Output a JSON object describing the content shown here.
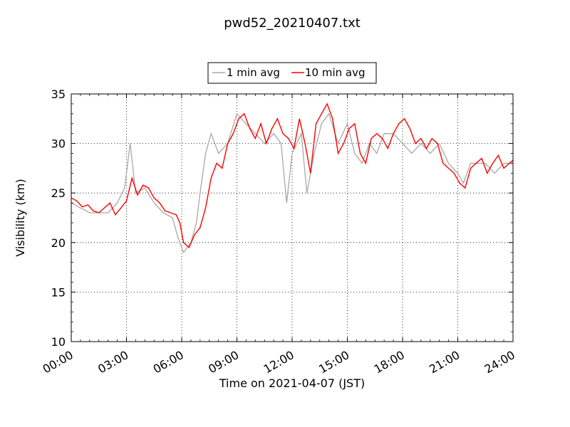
{
  "chart_data": {
    "type": "line",
    "title": "pwd52_20210407.txt",
    "xlabel": "Time on 2021-04-07 (JST)",
    "ylabel": "Visibility (km)",
    "xlim": [
      0,
      24
    ],
    "ylim": [
      10,
      35
    ],
    "x_ticks": [
      0,
      3,
      6,
      9,
      12,
      15,
      18,
      21,
      24
    ],
    "x_tick_labels": [
      "00:00",
      "03:00",
      "06:00",
      "09:00",
      "12:00",
      "15:00",
      "18:00",
      "21:00",
      "24:00"
    ],
    "y_ticks": [
      10,
      15,
      20,
      25,
      30,
      35
    ],
    "y_tick_labels": [
      "10",
      "15",
      "20",
      "25",
      "30",
      "35"
    ],
    "grid": true,
    "legend_position": "top-center",
    "series": [
      {
        "name": "1 min avg",
        "color": "#a9a9a9",
        "x": [
          0,
          0.5,
          1,
          1.5,
          2,
          2.5,
          2.9,
          3.2,
          3.5,
          4,
          4.5,
          5,
          5.5,
          5.8,
          6.1,
          6.5,
          6.8,
          7,
          7.3,
          7.6,
          8,
          8.5,
          9,
          9.5,
          10,
          10.5,
          11,
          11.4,
          11.7,
          12,
          12.5,
          12.8,
          13.2,
          13.6,
          14,
          14.5,
          15,
          15.4,
          15.8,
          16.2,
          16.6,
          17,
          17.5,
          18,
          18.5,
          19,
          19.5,
          20,
          20.5,
          21,
          21.3,
          21.7,
          22,
          22.5,
          23,
          23.5,
          24
        ],
        "y": [
          24,
          23.5,
          23,
          23,
          23,
          24,
          25.5,
          30,
          25,
          25.5,
          24,
          23,
          22.5,
          20.5,
          19,
          20,
          22,
          25,
          29,
          31,
          29,
          30,
          33,
          32,
          31,
          30,
          31,
          30,
          24,
          29,
          31,
          25,
          29,
          32,
          33,
          30,
          32,
          29,
          28,
          30,
          29,
          31,
          31,
          30,
          29,
          30,
          29,
          30,
          28,
          27,
          26,
          28,
          28,
          28,
          27,
          28,
          28
        ]
      },
      {
        "name": "10 min avg",
        "color": "#ff0000",
        "x": [
          0,
          0.3,
          0.6,
          0.9,
          1.2,
          1.5,
          1.8,
          2.1,
          2.4,
          2.7,
          3.0,
          3.3,
          3.6,
          3.9,
          4.2,
          4.5,
          4.8,
          5.1,
          5.4,
          5.7,
          5.9,
          6.1,
          6.4,
          6.7,
          7.0,
          7.3,
          7.6,
          7.9,
          8.2,
          8.5,
          8.8,
          9.1,
          9.4,
          9.7,
          10.0,
          10.3,
          10.6,
          10.9,
          11.2,
          11.5,
          11.8,
          12.1,
          12.4,
          12.7,
          13.0,
          13.3,
          13.6,
          13.9,
          14.2,
          14.5,
          14.8,
          15.1,
          15.4,
          15.7,
          16.0,
          16.3,
          16.6,
          16.9,
          17.2,
          17.5,
          17.8,
          18.1,
          18.4,
          18.7,
          19.0,
          19.3,
          19.6,
          19.9,
          20.2,
          20.5,
          20.8,
          21.1,
          21.4,
          21.7,
          22.0,
          22.3,
          22.6,
          22.9,
          23.2,
          23.5,
          23.8,
          24.0
        ],
        "y": [
          24.5,
          24.2,
          23.6,
          23.8,
          23.2,
          23.0,
          23.5,
          24.0,
          22.8,
          23.5,
          24.2,
          26.5,
          24.8,
          25.8,
          25.5,
          24.5,
          24.0,
          23.2,
          23.0,
          22.8,
          22.0,
          20.0,
          19.5,
          20.8,
          21.5,
          23.5,
          26.5,
          28.0,
          27.5,
          30.0,
          31.0,
          32.5,
          33.0,
          31.5,
          30.5,
          32.0,
          30.0,
          31.5,
          32.5,
          31.0,
          30.5,
          29.5,
          32.5,
          30.0,
          27.0,
          32.0,
          33.0,
          34.0,
          32.5,
          29.0,
          30.0,
          31.5,
          32.0,
          29.0,
          28.0,
          30.5,
          31.0,
          30.5,
          29.5,
          31.0,
          32.0,
          32.5,
          31.5,
          30.0,
          30.5,
          29.5,
          30.5,
          30.0,
          28.0,
          27.5,
          27.0,
          26.0,
          25.5,
          27.5,
          28.0,
          28.5,
          27.0,
          28.0,
          28.8,
          27.5,
          28.0,
          28.3
        ]
      }
    ]
  }
}
